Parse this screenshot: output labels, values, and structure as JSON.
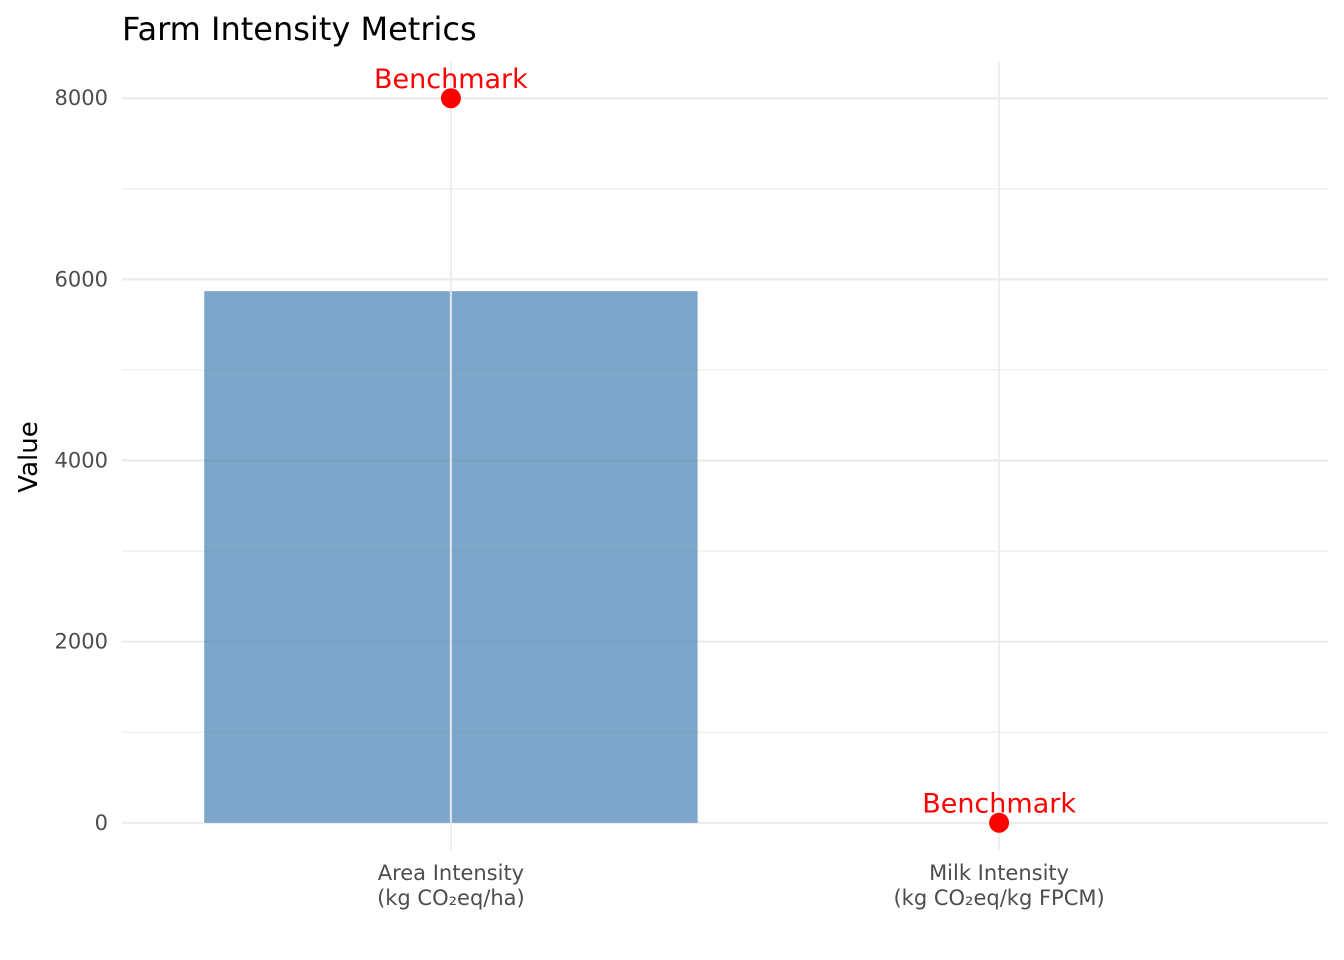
{
  "chart_data": {
    "type": "bar",
    "title": "Farm Intensity Metrics",
    "xlabel": "",
    "ylabel": "Value",
    "categories": [
      [
        "Area Intensity",
        "(kg CO₂eq/ha)"
      ],
      [
        "Milk Intensity",
        "(kg CO₂eq/kg FPCM)"
      ]
    ],
    "values": [
      5870,
      0
    ],
    "benchmarks": [
      {
        "value": 8000,
        "label": "Benchmark"
      },
      {
        "value": 1,
        "label": "Benchmark"
      }
    ],
    "yticks": [
      0,
      2000,
      4000,
      6000,
      8000
    ],
    "ylim": [
      -300,
      8400
    ],
    "grid": true,
    "colors": {
      "bar": "#4682b4",
      "benchmark": "#ff0000",
      "grid": "#ebebeb"
    }
  }
}
